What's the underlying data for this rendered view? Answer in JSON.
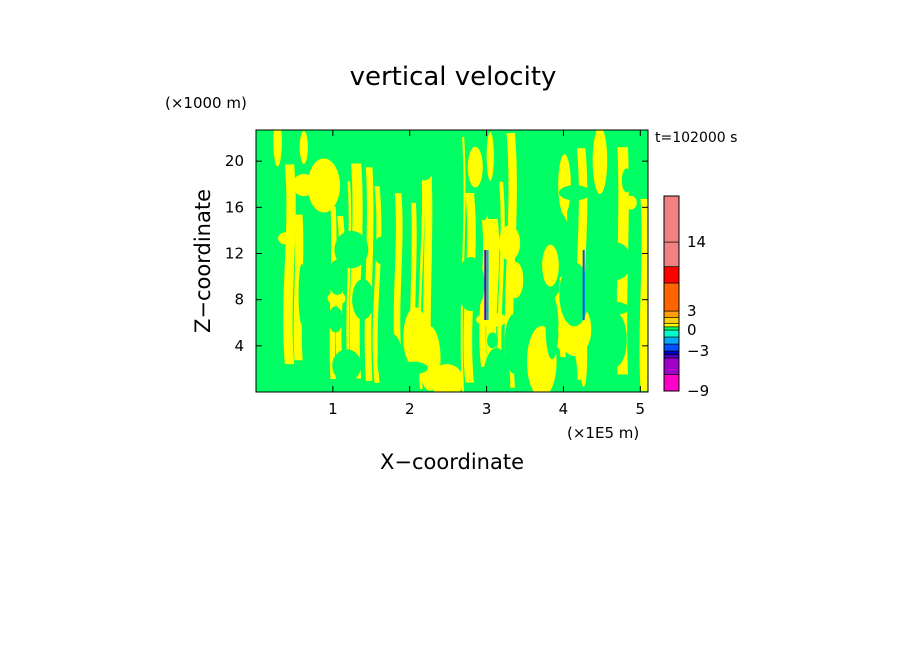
{
  "chart_data": {
    "type": "heatmap",
    "title": "vertical velocity",
    "xlabel": "X−coordinate",
    "ylabel": "Z−coordinate",
    "x_unit": "(×1E5 m)",
    "y_unit": "(×1000 m)",
    "time_label": "t=102000 s",
    "xlim": [
      0,
      5.1
    ],
    "ylim": [
      0,
      22.7
    ],
    "x_ticks": [
      1,
      2,
      3,
      4,
      5
    ],
    "x_tick_labels": [
      "1",
      "2",
      "3",
      "4",
      "5"
    ],
    "y_ticks": [
      4,
      8,
      12,
      16,
      20
    ],
    "y_tick_labels": [
      "4",
      "8",
      "12",
      "16",
      "20"
    ],
    "dominant_field": "alternating vertical streaks of near-zero vertical velocity (light green and yellow)",
    "colorbar": {
      "levels": [
        {
          "value": -9,
          "color": "#ff00c8"
        },
        {
          "value": -7,
          "color": "#a000c8"
        },
        {
          "value": -5,
          "color": "#5000c8"
        },
        {
          "value": -4,
          "color": "#0000c8"
        },
        {
          "value": -3,
          "color": "#0050ff"
        },
        {
          "value": -2,
          "color": "#00aaff"
        },
        {
          "value": -1,
          "color": "#00ffc8"
        },
        {
          "value": 0,
          "color": "#00ff64"
        },
        {
          "value": 0.5,
          "color": "#ffff00"
        },
        {
          "value": 1,
          "color": "#ffd200"
        },
        {
          "value": 2,
          "color": "#ffa000"
        },
        {
          "value": 3,
          "color": "#ff6400"
        },
        {
          "value": 4,
          "color": "#ff0000"
        },
        {
          "value": 8,
          "color": "#f08282"
        },
        {
          "value": 14,
          "color": "#f08282"
        },
        {
          "value": 20,
          "color": "#f8b4b4"
        }
      ],
      "tick_labels": [
        "14",
        "3",
        "0",
        "−3",
        "−9"
      ],
      "tick_values": [
        14,
        3,
        0,
        -3,
        -9
      ]
    }
  }
}
